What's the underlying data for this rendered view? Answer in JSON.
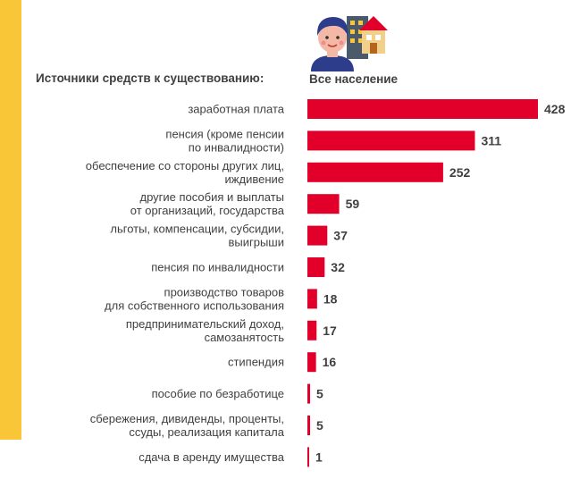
{
  "colors": {
    "bar": "#E2002A",
    "accent_stripe": "#F9C637",
    "text": "#404040"
  },
  "illustration": "person-house-icon",
  "chart_data": {
    "type": "bar",
    "orientation": "horizontal",
    "category_header": "Источники средств к существованию:",
    "series": [
      {
        "name": "Все население",
        "values": [
          428,
          311,
          252,
          59,
          37,
          32,
          18,
          17,
          16,
          5,
          5,
          1
        ]
      }
    ],
    "categories": [
      [
        "заработная плата"
      ],
      [
        "пенсия (кроме пенсии",
        "по инвалидности)"
      ],
      [
        "обеспечение со стороны других лиц,",
        "иждивение"
      ],
      [
        "другие пособия и выплаты",
        "от организаций, государства"
      ],
      [
        "льготы, компенсации, субсидии,",
        "выигрыши"
      ],
      [
        "пенсия по инвалидности"
      ],
      [
        "производство товаров",
        "для собственного использования"
      ],
      [
        "предпринимательский доход,",
        "самозанятость"
      ],
      [
        "стипендия"
      ],
      [
        "пособие по безработице"
      ],
      [
        "сбережения, дивиденды, проценты,",
        "ссуды, реализация капитала"
      ],
      [
        "сдача в аренду имущества"
      ]
    ],
    "xlim": [
      0,
      428
    ],
    "grid": false,
    "legend": "none",
    "data_labels": true
  }
}
